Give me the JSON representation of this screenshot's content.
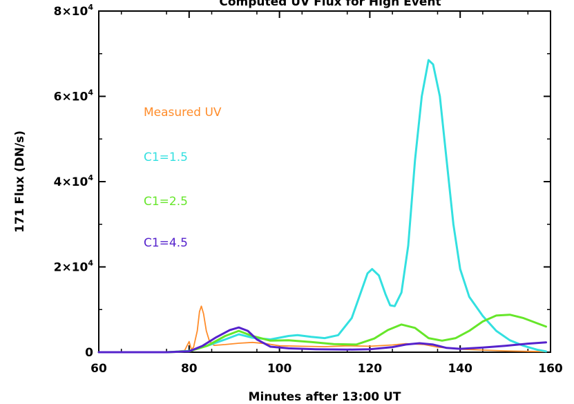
{
  "chart_data": {
    "type": "line",
    "title": "Computed UV Flux for High Event",
    "xlabel": "Minutes after 13:00 UT",
    "ylabel": "171 Flux (DN/s)",
    "xlim": [
      60,
      160
    ],
    "ylim": [
      0,
      80000
    ],
    "x_ticks": [
      {
        "value": 60,
        "label": "60"
      },
      {
        "value": 80,
        "label": "80"
      },
      {
        "value": 100,
        "label": "100"
      },
      {
        "value": 120,
        "label": "120"
      },
      {
        "value": 140,
        "label": "140"
      },
      {
        "value": 160,
        "label": "160"
      }
    ],
    "y_ticks": [
      {
        "value": 0,
        "mantissa": "0",
        "exp": ""
      },
      {
        "value": 20000,
        "mantissa": "2×10",
        "exp": "4"
      },
      {
        "value": 40000,
        "mantissa": "4×10",
        "exp": "4"
      },
      {
        "value": 60000,
        "mantissa": "6×10",
        "exp": "4"
      },
      {
        "value": 80000,
        "mantissa": "8×10",
        "exp": "4"
      }
    ],
    "grid": false,
    "legend_placement": "left, inside plot",
    "series": [
      {
        "name": "Measured UV",
        "color": "#ff8c2a",
        "stroke": "thin",
        "points": [
          [
            60,
            0
          ],
          [
            70,
            0
          ],
          [
            76,
            100
          ],
          [
            79,
            400
          ],
          [
            80,
            2500
          ],
          [
            80.5,
            600
          ],
          [
            81,
            1200
          ],
          [
            81.8,
            5000
          ],
          [
            82.3,
            9500
          ],
          [
            82.7,
            10800
          ],
          [
            83.2,
            9000
          ],
          [
            83.8,
            5000
          ],
          [
            84.5,
            2600
          ],
          [
            85.5,
            1600
          ],
          [
            88,
            1800
          ],
          [
            91,
            2100
          ],
          [
            94,
            2300
          ],
          [
            97,
            2000
          ],
          [
            100,
            1500
          ],
          [
            105,
            1400
          ],
          [
            110,
            1300
          ],
          [
            115,
            1500
          ],
          [
            120,
            1400
          ],
          [
            125,
            1700
          ],
          [
            128,
            2000
          ],
          [
            132,
            1800
          ],
          [
            135,
            1200
          ],
          [
            140,
            700
          ],
          [
            145,
            500
          ],
          [
            150,
            300
          ],
          [
            155,
            200
          ],
          [
            159,
            150
          ]
        ]
      },
      {
        "name": "C1=1.5",
        "color": "#33e0e0",
        "stroke": "thick",
        "points": [
          [
            60,
            0
          ],
          [
            75,
            0
          ],
          [
            80,
            300
          ],
          [
            84,
            1500
          ],
          [
            88,
            3000
          ],
          [
            91,
            4200
          ],
          [
            94,
            3400
          ],
          [
            98,
            3000
          ],
          [
            102,
            3800
          ],
          [
            104,
            4000
          ],
          [
            107,
            3600
          ],
          [
            110,
            3300
          ],
          [
            113,
            4000
          ],
          [
            116,
            8000
          ],
          [
            118,
            14000
          ],
          [
            119.5,
            18500
          ],
          [
            120.5,
            19500
          ],
          [
            122,
            18000
          ],
          [
            123.5,
            13500
          ],
          [
            124.5,
            11000
          ],
          [
            125.5,
            10800
          ],
          [
            127,
            14000
          ],
          [
            128.5,
            25000
          ],
          [
            130,
            45000
          ],
          [
            131.5,
            60000
          ],
          [
            133,
            68500
          ],
          [
            134,
            67500
          ],
          [
            135.5,
            60000
          ],
          [
            137,
            45000
          ],
          [
            138.5,
            30000
          ],
          [
            140,
            19500
          ],
          [
            142,
            13000
          ],
          [
            145,
            8500
          ],
          [
            148,
            5000
          ],
          [
            151,
            2800
          ],
          [
            154,
            1500
          ],
          [
            157,
            600
          ],
          [
            159,
            200
          ]
        ]
      },
      {
        "name": "C1=2.5",
        "color": "#66e62a",
        "stroke": "thick",
        "points": [
          [
            60,
            0
          ],
          [
            75,
            0
          ],
          [
            80,
            200
          ],
          [
            84,
            1500
          ],
          [
            88,
            3800
          ],
          [
            91,
            5000
          ],
          [
            94,
            3800
          ],
          [
            98,
            2700
          ],
          [
            102,
            2800
          ],
          [
            107,
            2400
          ],
          [
            112,
            1900
          ],
          [
            117,
            1800
          ],
          [
            121,
            3200
          ],
          [
            124,
            5200
          ],
          [
            127,
            6500
          ],
          [
            130,
            5700
          ],
          [
            133,
            3300
          ],
          [
            136,
            2700
          ],
          [
            139,
            3300
          ],
          [
            142,
            5000
          ],
          [
            145,
            7200
          ],
          [
            148,
            8600
          ],
          [
            151,
            8800
          ],
          [
            154,
            8000
          ],
          [
            157,
            6800
          ],
          [
            159,
            6000
          ]
        ]
      },
      {
        "name": "C1=4.5",
        "color": "#5522cc",
        "stroke": "thick",
        "points": [
          [
            60,
            0
          ],
          [
            75,
            0
          ],
          [
            80,
            200
          ],
          [
            83,
            1500
          ],
          [
            86,
            3500
          ],
          [
            89,
            5200
          ],
          [
            91,
            5800
          ],
          [
            93,
            5000
          ],
          [
            95,
            3000
          ],
          [
            98,
            1300
          ],
          [
            102,
            900
          ],
          [
            108,
            700
          ],
          [
            115,
            600
          ],
          [
            120,
            700
          ],
          [
            125,
            1200
          ],
          [
            128,
            1800
          ],
          [
            131,
            2100
          ],
          [
            134,
            1800
          ],
          [
            137,
            1000
          ],
          [
            140,
            800
          ],
          [
            145,
            1100
          ],
          [
            150,
            1500
          ],
          [
            155,
            2000
          ],
          [
            159,
            2300
          ]
        ]
      }
    ]
  }
}
